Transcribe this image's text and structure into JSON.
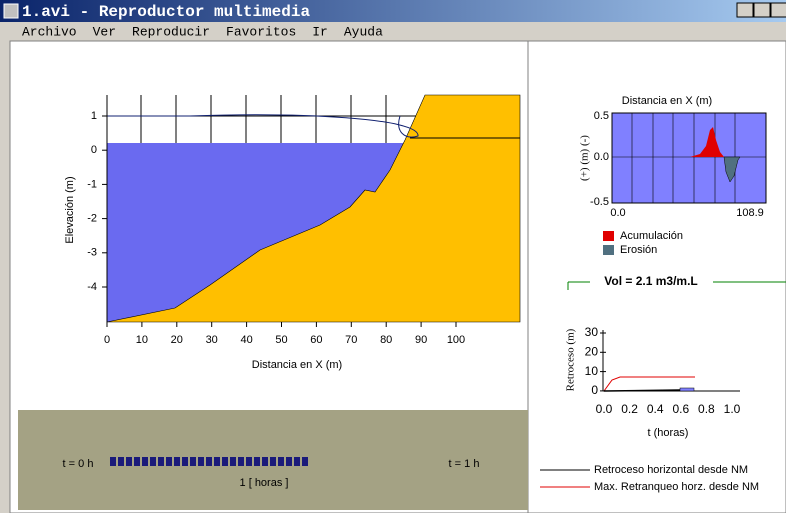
{
  "window": {
    "title": "1.avi - Reproductor multimedia"
  },
  "menu": [
    "Archivo",
    "Ver",
    "Reproducir",
    "Favoritos",
    "Ir",
    "Ayuda"
  ],
  "profile_chart": {
    "xlabel": "Distancia en X (m)",
    "ylabel": "Elevación (m)",
    "xticks": [
      "0",
      "10",
      "20",
      "30",
      "40",
      "50",
      "60",
      "70",
      "80",
      "90",
      "100"
    ],
    "yticks": [
      "1",
      "0",
      "-1",
      "-2",
      "-3",
      "-4"
    ]
  },
  "change_chart": {
    "title": "Distancia en X (m)",
    "ylabel": "(+)  (m)  (-)",
    "yticks": [
      "0.5",
      "0.0",
      "-0.5"
    ],
    "xticks": [
      "0.0",
      "108.9"
    ],
    "legend": [
      "Acumulación",
      "Erosión"
    ],
    "volume": "Vol = 2.1 m3/m.L"
  },
  "retreat_chart": {
    "ylabel": "Retroceso (m)",
    "xlabel": "t (horas)",
    "yticks": [
      "30",
      "20",
      "10",
      "0"
    ],
    "xticks": [
      "0.0",
      "0.2",
      "0.4",
      "0.6",
      "0.8",
      "1.0"
    ],
    "legend": [
      "Retroceso horizontal desde NM",
      "Max. Retranqueo horz. desde NM"
    ]
  },
  "timeline": {
    "start": "t = 0 h",
    "end": "t = 1 h",
    "duration": "1 [ horas ]"
  }
}
